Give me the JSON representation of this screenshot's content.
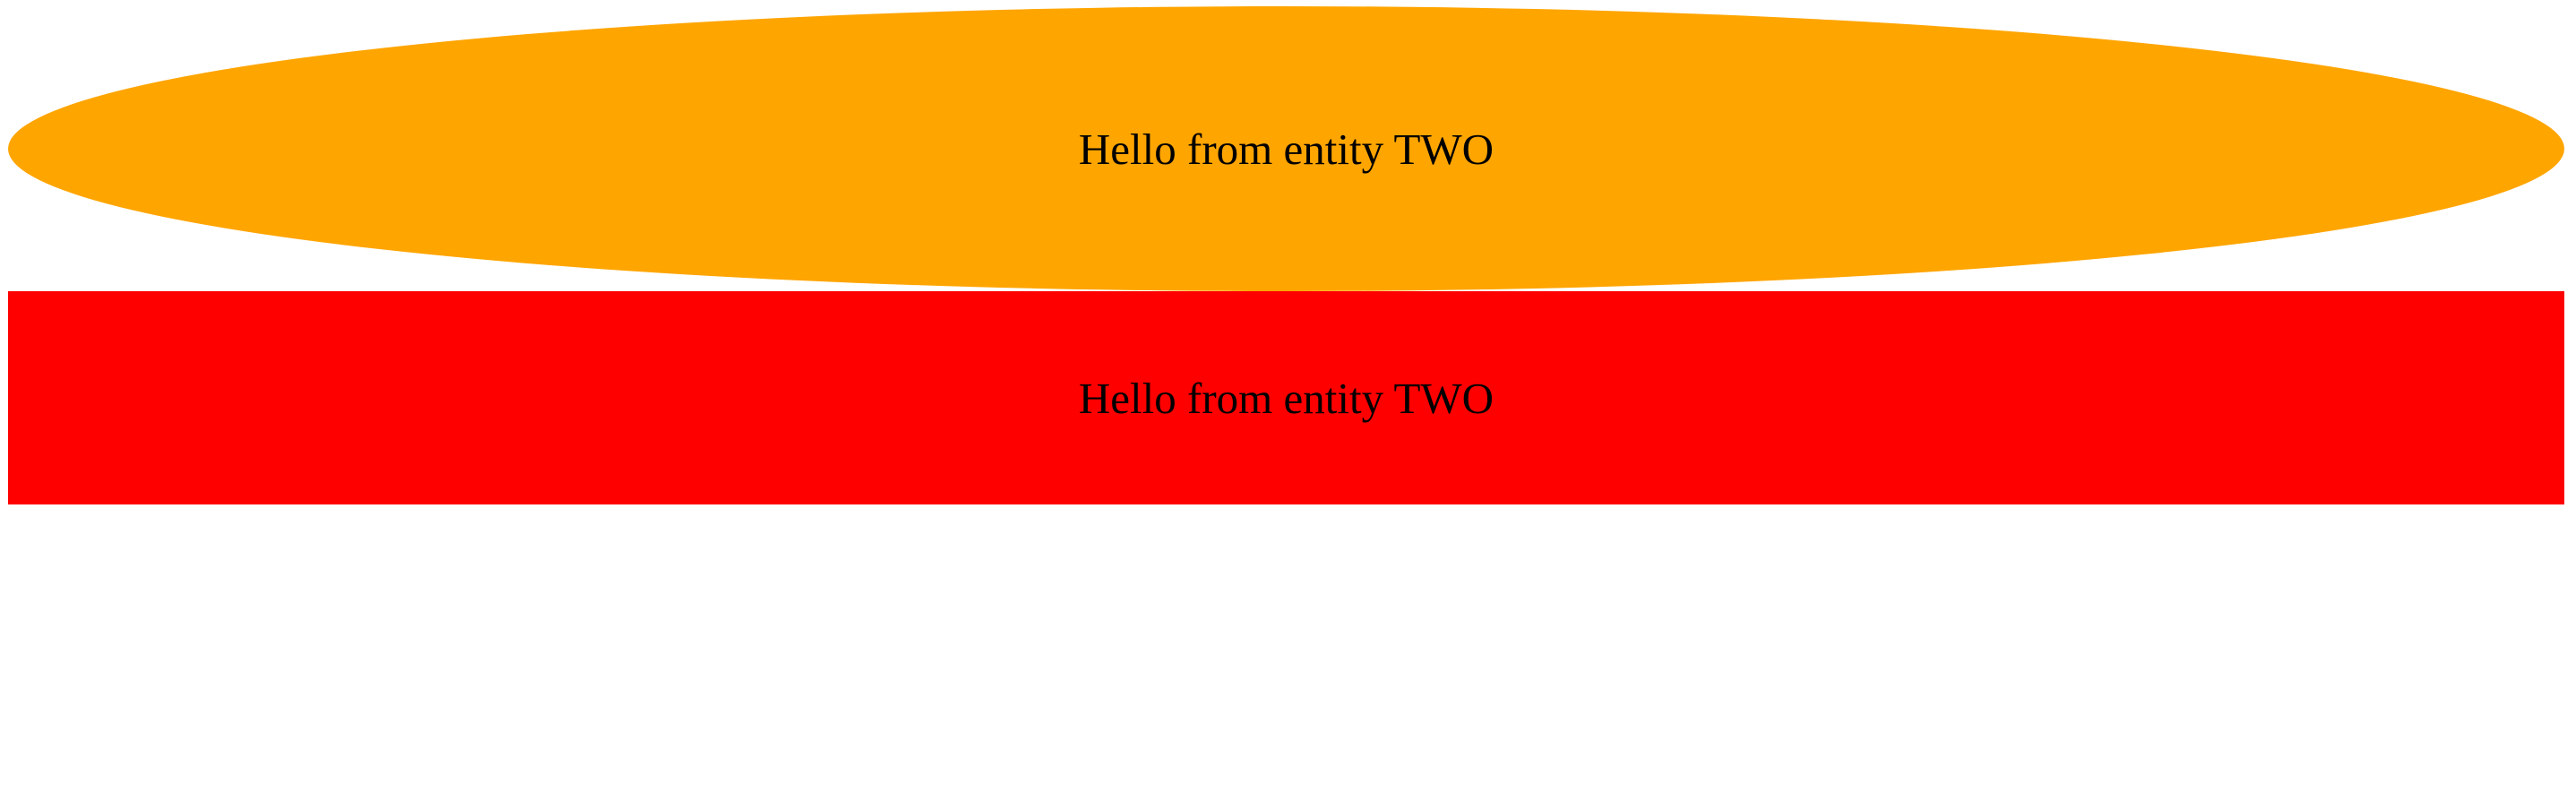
{
  "entities": [
    {
      "shape": "ellipse",
      "label": "Hello from entity TWO",
      "color": "#FFA500"
    },
    {
      "shape": "rectangle",
      "label": "Hello from entity TWO",
      "color": "#FF0000"
    }
  ]
}
